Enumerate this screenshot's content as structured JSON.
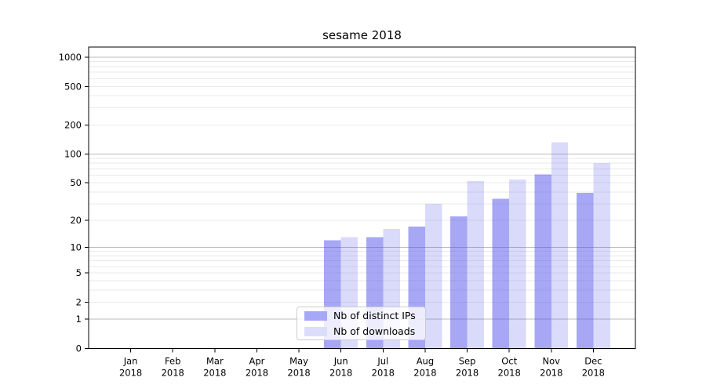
{
  "chart_data": {
    "type": "bar",
    "title": "sesame 2018",
    "categories": [
      "Jan",
      "Feb",
      "Mar",
      "Apr",
      "May",
      "Jun",
      "Jul",
      "Aug",
      "Sep",
      "Oct",
      "Nov",
      "Dec"
    ],
    "x_tick_year": "2018",
    "series": [
      {
        "name": "Nb of distinct IPs",
        "color": "#4f4fee",
        "fill_opacity": 0.5,
        "swatch_color": "#a7a7f7",
        "values": [
          0,
          0,
          0,
          0,
          0,
          12,
          13,
          17,
          22,
          34,
          61,
          39
        ]
      },
      {
        "name": "Nb of downloads",
        "color": "#4f4fee",
        "fill_opacity": 0.21,
        "swatch_color": "#dcdcfb",
        "values": [
          0,
          0,
          0,
          0,
          0,
          13,
          16,
          30,
          52,
          54,
          132,
          80
        ]
      }
    ],
    "xlabel": "",
    "ylabel": "",
    "yscale": "log1p",
    "y_tick_labels": [
      0,
      1,
      2,
      5,
      10,
      20,
      50,
      100,
      200,
      500,
      1000
    ],
    "ylim": [
      0,
      1275
    ],
    "grid": "horizontal",
    "legend_position": "lower-center-inside"
  }
}
